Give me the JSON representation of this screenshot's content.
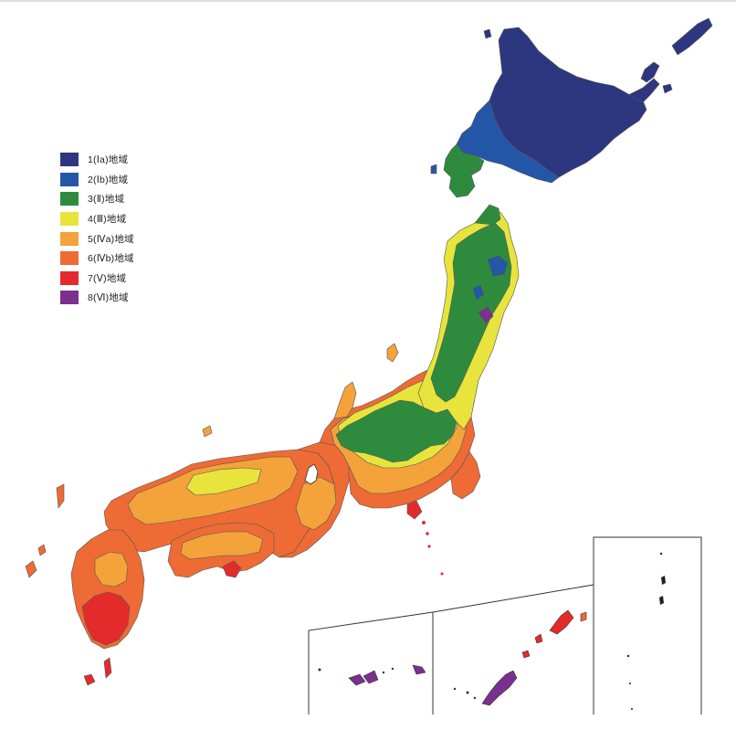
{
  "map": {
    "legend": [
      {
        "label": "1(Ⅰa)地域",
        "color": "#2d3780"
      },
      {
        "label": "2(Ⅰb)地域",
        "color": "#2456a8"
      },
      {
        "label": "3(Ⅱ)地域",
        "color": "#2e8b3e"
      },
      {
        "label": "4(Ⅲ)地域",
        "color": "#e8e43c"
      },
      {
        "label": "5(Ⅳa)地域",
        "color": "#f4a23a"
      },
      {
        "label": "6(Ⅳb)地域",
        "color": "#ee6b35"
      },
      {
        "label": "7(Ⅴ)地域",
        "color": "#e42b2b"
      },
      {
        "label": "8(Ⅵ)地域",
        "color": "#7b2f8e"
      }
    ]
  }
}
